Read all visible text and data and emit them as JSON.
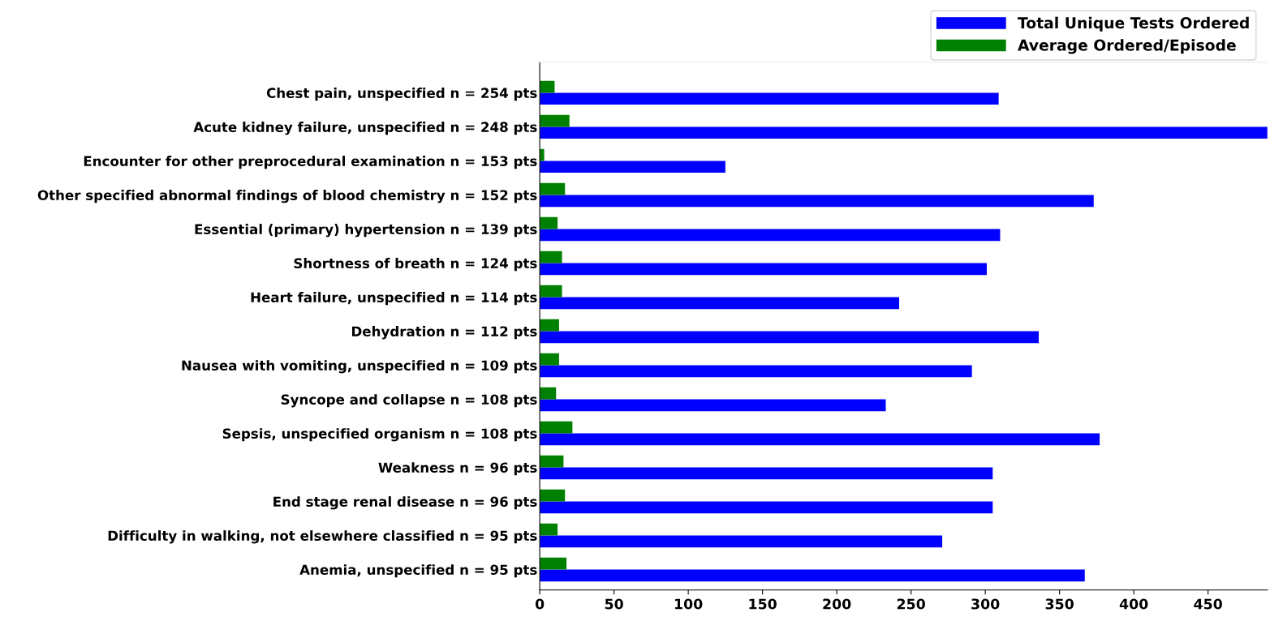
{
  "chart_data": {
    "type": "bar",
    "orientation": "horizontal",
    "categories": [
      "Chest pain, unspecified n = 254 pts",
      "Acute kidney failure, unspecified n = 248 pts",
      "Encounter for other preprocedural examination n = 153 pts",
      "Other specified abnormal findings of blood chemistry n = 152 pts",
      "Essential (primary) hypertension n = 139 pts",
      "Shortness of breath n = 124 pts",
      "Heart failure, unspecified n = 114 pts",
      "Dehydration n = 112 pts",
      "Nausea with vomiting, unspecified n = 109 pts",
      "Syncope and collapse n = 108 pts",
      "Sepsis, unspecified organism n = 108 pts",
      "Weakness n = 96 pts",
      "End stage renal disease n = 96 pts",
      "Difficulty in walking, not elsewhere classified n = 95 pts",
      "Anemia, unspecified n = 95 pts"
    ],
    "series": [
      {
        "name": "Total Unique Tests Ordered",
        "color": "#0000ff",
        "values": [
          309,
          490,
          125,
          373,
          310,
          301,
          242,
          336,
          291,
          233,
          377,
          305,
          305,
          271,
          367
        ]
      },
      {
        "name": "Average Ordered/Episode",
        "color": "#008000",
        "values": [
          10,
          20,
          3,
          17,
          12,
          15,
          15,
          13,
          13,
          11,
          22,
          16,
          17,
          12,
          18
        ]
      }
    ],
    "xlim": [
      0,
      490
    ],
    "xticks": [
      0,
      50,
      100,
      150,
      200,
      250,
      300,
      350,
      400,
      450
    ],
    "grid": false,
    "legend": "top right"
  }
}
